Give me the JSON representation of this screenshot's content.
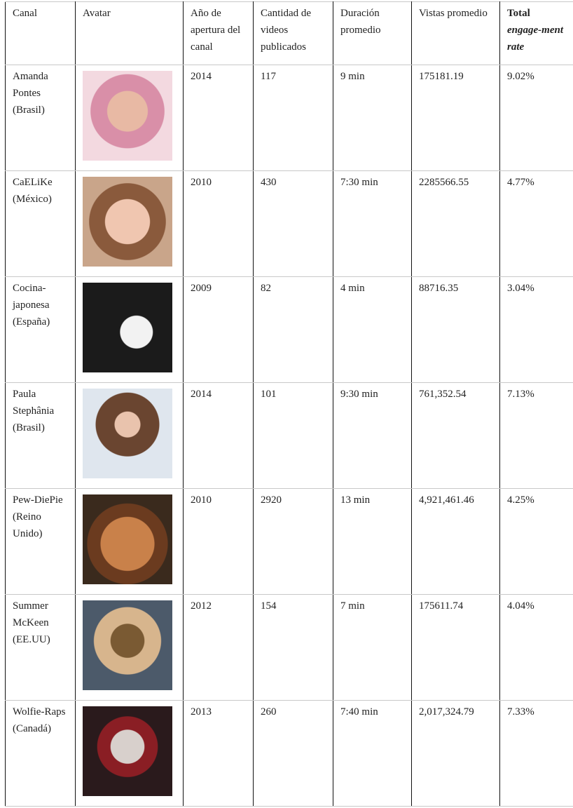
{
  "table": {
    "header": [
      "Canal",
      "Avatar",
      "Año de apertura del canal",
      "Cantidad de videos publicados",
      "Duración promedio",
      "Vistas promedio",
      {
        "title": "Total",
        "subtitle": "engage-ment rate"
      }
    ],
    "rows": [
      [
        "Amanda Pontes (Brasil)",
        "2014",
        "117",
        "9 min",
        "175181.19",
        "9.02%"
      ],
      [
        "CaELiKe (México)",
        "2010",
        "430",
        "7:30 min",
        "2285566.55",
        "4.77%"
      ],
      [
        "Cocina-japonesa (España)",
        "2009",
        "82",
        "4 min",
        "88716.35",
        "3.04%"
      ],
      [
        "Paula Stephânia (Brasil)",
        "2014",
        "101",
        "9:30 min",
        "761,352.54",
        "7.13%"
      ],
      [
        "Pew-DiePie (Reino Unido)",
        "2010",
        "2920",
        "13 min",
        "4,921,461.46",
        "4.25%"
      ],
      [
        "Summer McKeen (EE.UU)",
        "2012",
        "154",
        "7 min",
        "175611.74",
        "4.04%"
      ],
      [
        "Wolfie-Raps (Canadá)",
        "2013",
        "260",
        "7:40 min",
        "2,017,324.79",
        "7.33%"
      ]
    ]
  }
}
